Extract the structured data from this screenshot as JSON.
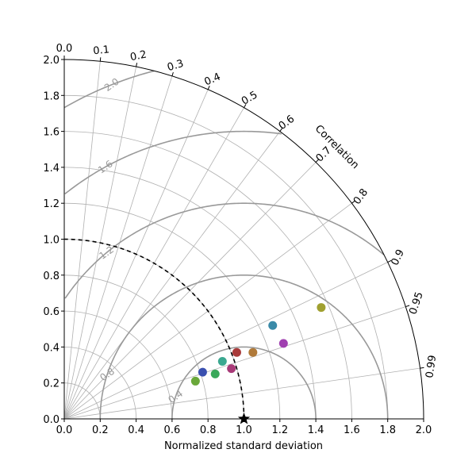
{
  "chart_data": {
    "type": "scatter",
    "subtype": "taylor-diagram",
    "title": "",
    "xlabel": "Normalized standard deviation",
    "correlation_label": "Correlation",
    "std_range": [
      0,
      2.0
    ],
    "x_ticks": [
      "0.0",
      "0.2",
      "0.4",
      "0.6",
      "0.8",
      "1.0",
      "1.2",
      "1.4",
      "1.6",
      "1.8",
      "2.0"
    ],
    "y_ticks": [
      "0.0",
      "0.2",
      "0.4",
      "0.6",
      "0.8",
      "1.0",
      "1.2",
      "1.4",
      "1.6",
      "1.8",
      "2.0"
    ],
    "correlation_ticks": [
      {
        "value": 0.0,
        "label": "0.0"
      },
      {
        "value": 0.1,
        "label": "0.1"
      },
      {
        "value": 0.2,
        "label": "0.2"
      },
      {
        "value": 0.3,
        "label": "0.3"
      },
      {
        "value": 0.4,
        "label": "0.4"
      },
      {
        "value": 0.5,
        "label": "0.5"
      },
      {
        "value": 0.6,
        "label": "0.6"
      },
      {
        "value": 0.7,
        "label": "0.7"
      },
      {
        "value": 0.8,
        "label": "0.8"
      },
      {
        "value": 0.9,
        "label": "0.9"
      },
      {
        "value": 0.95,
        "label": "0.95"
      },
      {
        "value": 0.99,
        "label": "0.99"
      }
    ],
    "rms_contours": [
      {
        "level": 0.4,
        "label": "0.4"
      },
      {
        "level": 0.8,
        "label": "0.8"
      },
      {
        "level": 1.2,
        "label": "1.2"
      },
      {
        "level": 1.6,
        "label": "1.6"
      },
      {
        "level": 2.0,
        "label": "2.0"
      }
    ],
    "reference": {
      "std": 1.0,
      "marker": "star",
      "color": "#000000"
    },
    "points": [
      {
        "x": 1.43,
        "y": 0.62,
        "color": "#a0a030"
      },
      {
        "x": 1.16,
        "y": 0.52,
        "color": "#3a8aa8"
      },
      {
        "x": 1.22,
        "y": 0.42,
        "color": "#a040b0"
      },
      {
        "x": 0.96,
        "y": 0.37,
        "color": "#a83a3a"
      },
      {
        "x": 1.05,
        "y": 0.37,
        "color": "#b07a3a"
      },
      {
        "x": 0.88,
        "y": 0.32,
        "color": "#3aa890"
      },
      {
        "x": 0.93,
        "y": 0.28,
        "color": "#a83a78"
      },
      {
        "x": 0.77,
        "y": 0.26,
        "color": "#3a50b0"
      },
      {
        "x": 0.84,
        "y": 0.25,
        "color": "#3aa85a"
      },
      {
        "x": 0.73,
        "y": 0.21,
        "color": "#6aa83a"
      }
    ],
    "grid": true,
    "colors": {
      "axis": "#000000",
      "grid": "#b0b0b0",
      "contour": "#999999"
    }
  }
}
